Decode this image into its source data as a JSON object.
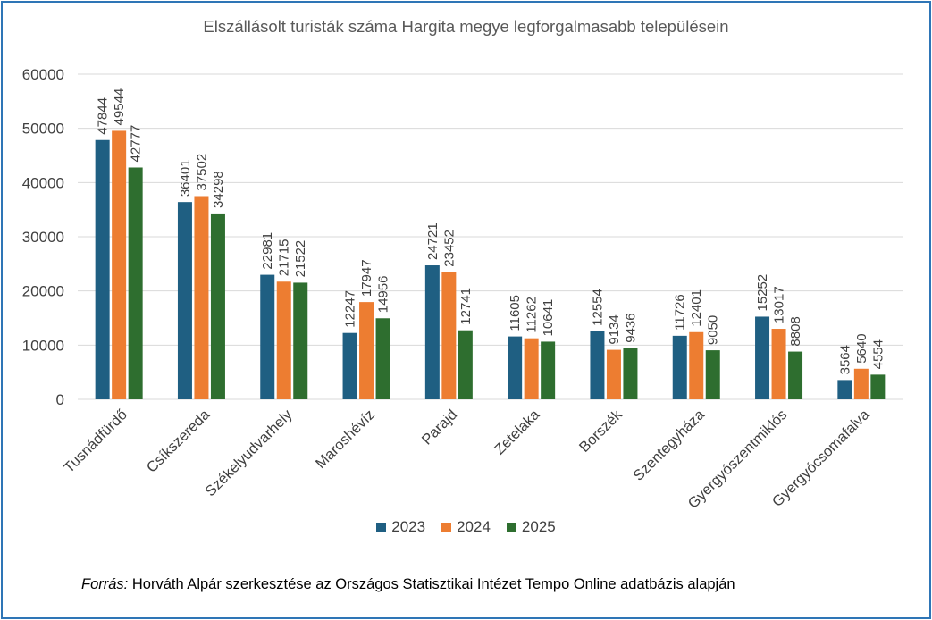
{
  "chart_data": {
    "type": "bar",
    "title": "Elszállásolt turisták száma Hargita megye legforgalmasabb településein",
    "xlabel": "",
    "ylabel": "",
    "ylim": [
      0,
      60000
    ],
    "yticks": [
      "0",
      "10000",
      "20000",
      "30000",
      "40000",
      "50000",
      "60000"
    ],
    "grid": true,
    "legend_position": "bottom",
    "categories": [
      "Tusnádfürdő",
      "Csíkszereda",
      "Székelyudvarhely",
      "Maroshévíz",
      "Parajd",
      "Zetelaka",
      "Borszék",
      "Szentegyháza",
      "Gyergyószentmiklós",
      "Gyergyócsomafalva"
    ],
    "series": [
      {
        "name": "2023",
        "color": "#1f5f82",
        "values": [
          47844,
          36401,
          22981,
          12247,
          24721,
          11605,
          12554,
          11726,
          15252,
          3564
        ]
      },
      {
        "name": "2024",
        "color": "#ed7d31",
        "values": [
          49544,
          37502,
          21715,
          17947,
          23452,
          11262,
          9134,
          12401,
          13017,
          5640
        ]
      },
      {
        "name": "2025",
        "color": "#2e6e2f",
        "values": [
          42777,
          34298,
          21522,
          14956,
          12741,
          10641,
          9436,
          9050,
          8808,
          4554
        ]
      }
    ]
  },
  "source": {
    "label": "Forrás:",
    "text": "Horváth Alpár szerkesztése  az Országos Statisztikai Intézet Tempo Online adatbázis alapján"
  },
  "frame_color": "#2e75b6"
}
